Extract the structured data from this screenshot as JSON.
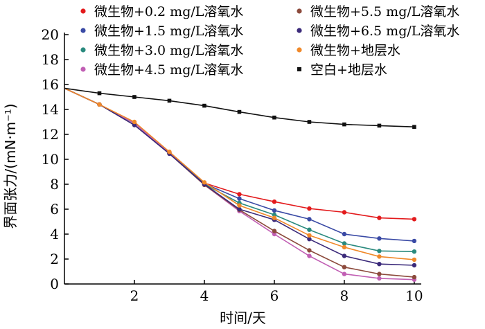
{
  "chart_data": {
    "type": "line",
    "xlabel": "时间/天",
    "ylabel": "界面张力/(mN·m⁻¹)",
    "xlim": [
      0,
      10.2
    ],
    "ylim": [
      0,
      20
    ],
    "xticks": [
      2,
      4,
      6,
      8,
      10
    ],
    "yticks": [
      0,
      2,
      4,
      6,
      8,
      10,
      12,
      14,
      16,
      18,
      20
    ],
    "grid": false,
    "legend_position": "top",
    "x": [
      0,
      1,
      2,
      3,
      4,
      5,
      6,
      7,
      8,
      9,
      10
    ],
    "series": [
      {
        "name": "微生物+0.2 mg/L溶氧水",
        "color": "#e31a1c",
        "marker": "circle",
        "values": [
          15.7,
          14.4,
          12.9,
          10.5,
          8.1,
          7.2,
          6.6,
          6.05,
          5.75,
          5.3,
          5.2
        ]
      },
      {
        "name": "微生物+1.5 mg/L溶氧水",
        "color": "#3a4aa5",
        "marker": "circle",
        "values": [
          15.7,
          14.4,
          12.9,
          10.5,
          8.05,
          6.85,
          5.9,
          5.2,
          4.0,
          3.65,
          3.45
        ]
      },
      {
        "name": "微生物+3.0 mg/L溶氧水",
        "color": "#2a8a7e",
        "marker": "circle",
        "values": [
          15.7,
          14.4,
          12.9,
          10.5,
          8.0,
          6.5,
          5.55,
          4.35,
          3.25,
          2.65,
          2.6
        ]
      },
      {
        "name": "微生物+4.5 mg/L溶氧水",
        "color": "#c15fb4",
        "marker": "circle",
        "values": [
          15.7,
          14.4,
          12.9,
          10.5,
          7.95,
          5.85,
          4.0,
          2.25,
          0.8,
          0.45,
          0.35
        ]
      },
      {
        "name": "微生物+5.5 mg/L溶氧水",
        "color": "#8c4a3c",
        "marker": "circle",
        "values": [
          15.7,
          14.4,
          12.75,
          10.45,
          7.95,
          5.95,
          4.25,
          2.7,
          1.35,
          0.8,
          0.55
        ]
      },
      {
        "name": "微生物+6.5 mg/L溶氧水",
        "color": "#3b2a7a",
        "marker": "circle",
        "values": [
          15.7,
          14.4,
          12.75,
          10.45,
          8.0,
          6.0,
          5.15,
          3.6,
          2.25,
          1.6,
          1.5
        ]
      },
      {
        "name": "微生物+地层水",
        "color": "#f0892a",
        "marker": "circle",
        "values": [
          15.7,
          14.4,
          13.0,
          10.6,
          8.15,
          6.3,
          5.3,
          3.9,
          2.95,
          2.2,
          1.95
        ]
      },
      {
        "name": "空白+地层水",
        "color": "#111111",
        "marker": "square",
        "values": [
          15.7,
          15.3,
          15.0,
          14.7,
          14.3,
          13.8,
          13.35,
          13.0,
          12.8,
          12.7,
          12.6
        ]
      }
    ]
  }
}
